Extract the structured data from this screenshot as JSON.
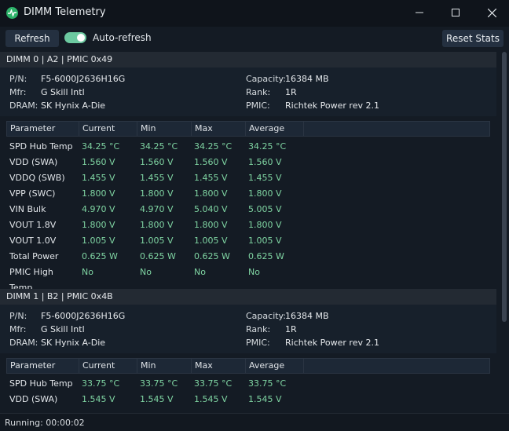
{
  "window": {
    "title": "DIMM Telemetry"
  },
  "toolbar": {
    "refresh_label": "Refresh",
    "auto_refresh_label": "Auto-refresh",
    "auto_refresh_on": true,
    "reset_label": "Reset Stats"
  },
  "table_headers": [
    "Parameter",
    "Current",
    "Min",
    "Max",
    "Average"
  ],
  "dimms": [
    {
      "header": "DIMM 0 | A2 | PMIC 0x49",
      "info_left": [
        {
          "k": "P/N:",
          "v": "F5-6000J2636H16G"
        },
        {
          "k": "Mfr:",
          "v": "G Skill Intl"
        },
        {
          "k": "DRAM:",
          "v": "SK Hynix A-Die"
        }
      ],
      "info_right": [
        {
          "k": "Capacity:",
          "v": "16384 MB"
        },
        {
          "k": "Rank:",
          "v": "1R"
        },
        {
          "k": "PMIC:",
          "v": "Richtek Power rev 2.1"
        }
      ],
      "rows": [
        [
          "SPD Hub Temp",
          "34.25 °C",
          "34.25 °C",
          "34.25 °C",
          "34.25 °C"
        ],
        [
          "VDD (SWA)",
          "1.560 V",
          "1.560 V",
          "1.560 V",
          "1.560 V"
        ],
        [
          "VDDQ (SWB)",
          "1.455 V",
          "1.455 V",
          "1.455 V",
          "1.455 V"
        ],
        [
          "VPP (SWC)",
          "1.800 V",
          "1.800 V",
          "1.800 V",
          "1.800 V"
        ],
        [
          "VIN Bulk",
          "4.970 V",
          "4.970 V",
          "5.040 V",
          "5.005 V"
        ],
        [
          "VOUT 1.8V",
          "1.800 V",
          "1.800 V",
          "1.800 V",
          "1.800 V"
        ],
        [
          "VOUT 1.0V",
          "1.005 V",
          "1.005 V",
          "1.005 V",
          "1.005 V"
        ],
        [
          "Total Power",
          "0.625 W",
          "0.625 W",
          "0.625 W",
          "0.625 W"
        ],
        [
          "PMIC High Temp",
          "No",
          "No",
          "No",
          "No"
        ]
      ]
    },
    {
      "header": "DIMM 1 | B2 | PMIC 0x4B",
      "info_left": [
        {
          "k": "P/N:",
          "v": "F5-6000J2636H16G"
        },
        {
          "k": "Mfr:",
          "v": "G Skill Intl"
        },
        {
          "k": "DRAM:",
          "v": "SK Hynix A-Die"
        }
      ],
      "info_right": [
        {
          "k": "Capacity:",
          "v": "16384 MB"
        },
        {
          "k": "Rank:",
          "v": "1R"
        },
        {
          "k": "PMIC:",
          "v": "Richtek Power rev 2.1"
        }
      ],
      "rows": [
        [
          "SPD Hub Temp",
          "33.75 °C",
          "33.75 °C",
          "33.75 °C",
          "33.75 °C"
        ],
        [
          "VDD (SWA)",
          "1.545 V",
          "1.545 V",
          "1.545 V",
          "1.545 V"
        ]
      ]
    }
  ],
  "status": {
    "text": "Running: 00:00:02"
  }
}
